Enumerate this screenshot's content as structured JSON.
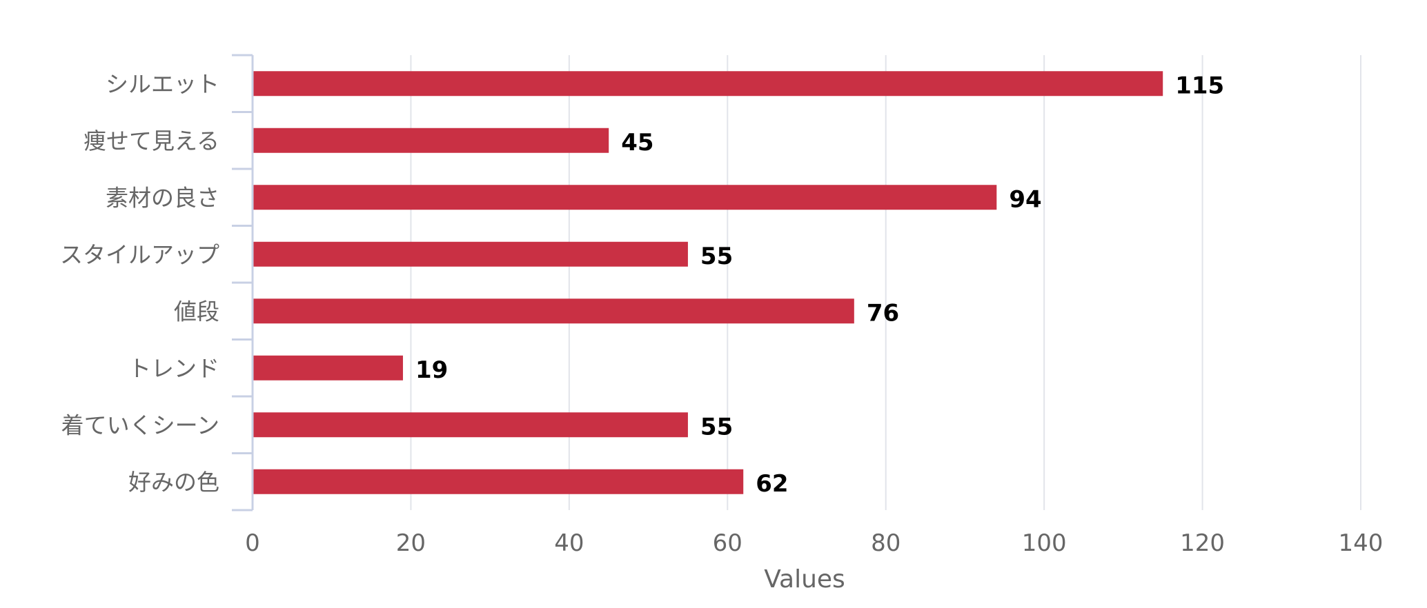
{
  "colors": {
    "bar": "#c93044",
    "grid": "#e2e4ea",
    "axis": "#c8d0e4",
    "label": "#666666",
    "data_label": "#000000"
  },
  "chart_data": {
    "type": "bar",
    "orientation": "horizontal",
    "categories": [
      "シルエット",
      "痩せて見える",
      "素材の良さ",
      "スタイルアップ",
      "値段",
      "トレンド",
      "着ていくシーン",
      "好みの色"
    ],
    "values": [
      115,
      45,
      94,
      55,
      76,
      19,
      55,
      62
    ],
    "xlabel": "Values",
    "ylabel": "",
    "xlim": [
      0,
      140
    ],
    "xticks": [
      0,
      20,
      40,
      60,
      80,
      100,
      120,
      140
    ],
    "grid": true,
    "legend": "none",
    "data_labels": true
  }
}
